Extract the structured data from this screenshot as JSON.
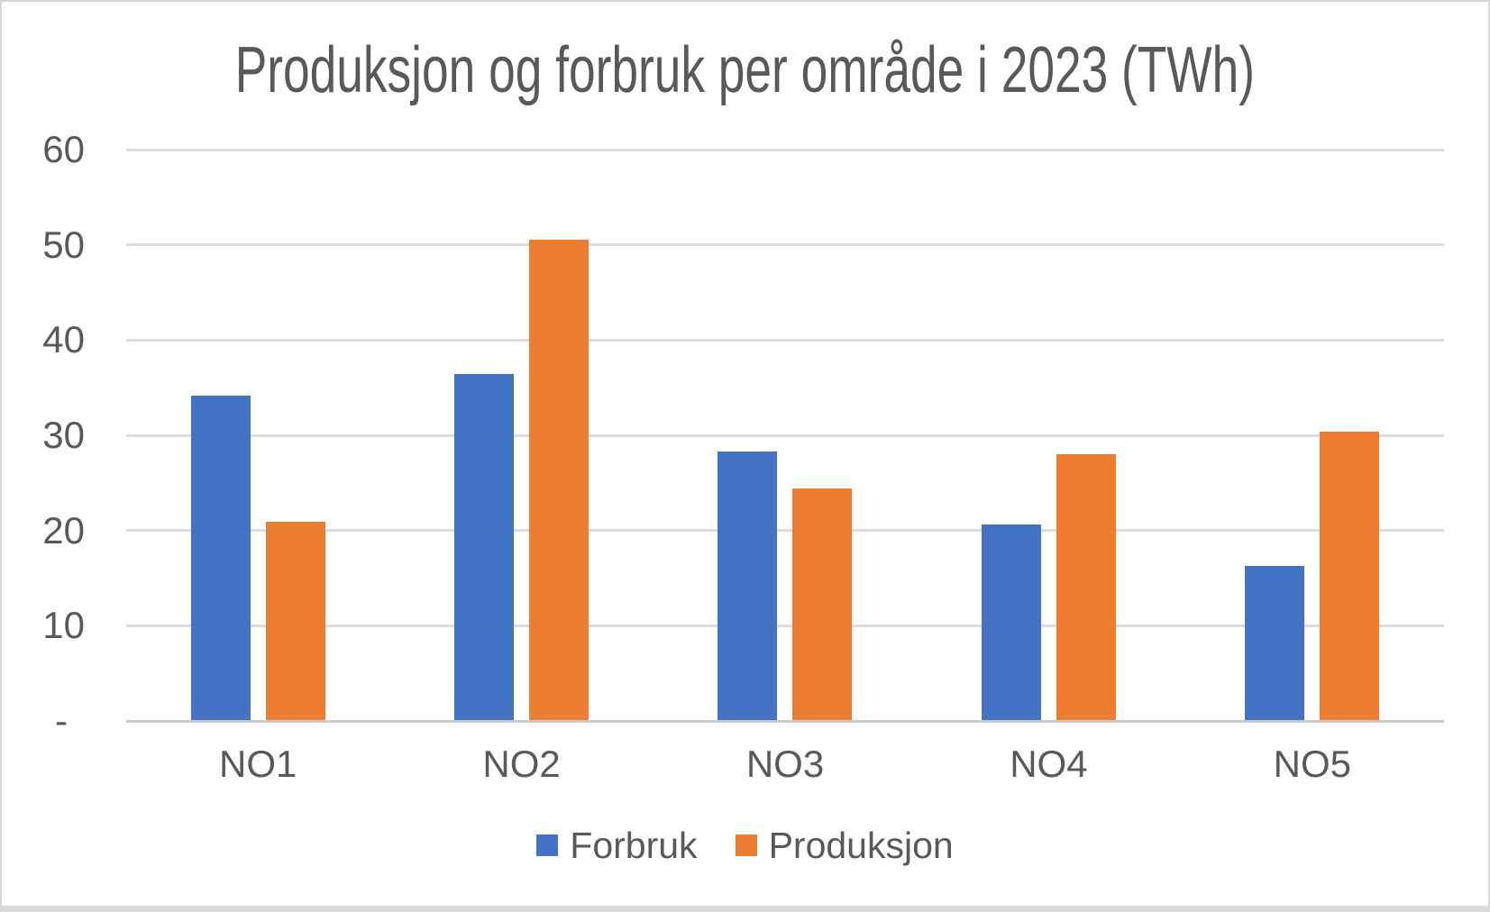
{
  "window": {
    "background": "#FFFFFF",
    "border_color": "#D8D6D4",
    "text_color": "#595959"
  },
  "chart_data": {
    "type": "bar",
    "title": "Produksjon og forbruk per område i 2023 (TWh)",
    "categories": [
      "NO1",
      "NO2",
      "NO3",
      "NO4",
      "NO5"
    ],
    "series": [
      {
        "name": "Forbruk",
        "color": "#4472C4",
        "values": [
          34.2,
          36.4,
          28.3,
          20.6,
          16.3
        ]
      },
      {
        "name": "Produksjon",
        "color": "#ED7D31",
        "values": [
          20.9,
          50.5,
          24.4,
          28.0,
          30.4
        ]
      }
    ],
    "xlabel": "",
    "ylabel": "",
    "ylim": [
      0,
      60
    ],
    "yticks": [
      {
        "value": 60,
        "label": "60"
      },
      {
        "value": 50,
        "label": "50"
      },
      {
        "value": 40,
        "label": "40"
      },
      {
        "value": 30,
        "label": "30"
      },
      {
        "value": 20,
        "label": "20"
      },
      {
        "value": 10,
        "label": "10"
      },
      {
        "value": 0,
        "label": "-"
      }
    ],
    "grid": "horizontal",
    "gridline_color": "#DCDCDC",
    "legend_position": "bottom"
  }
}
